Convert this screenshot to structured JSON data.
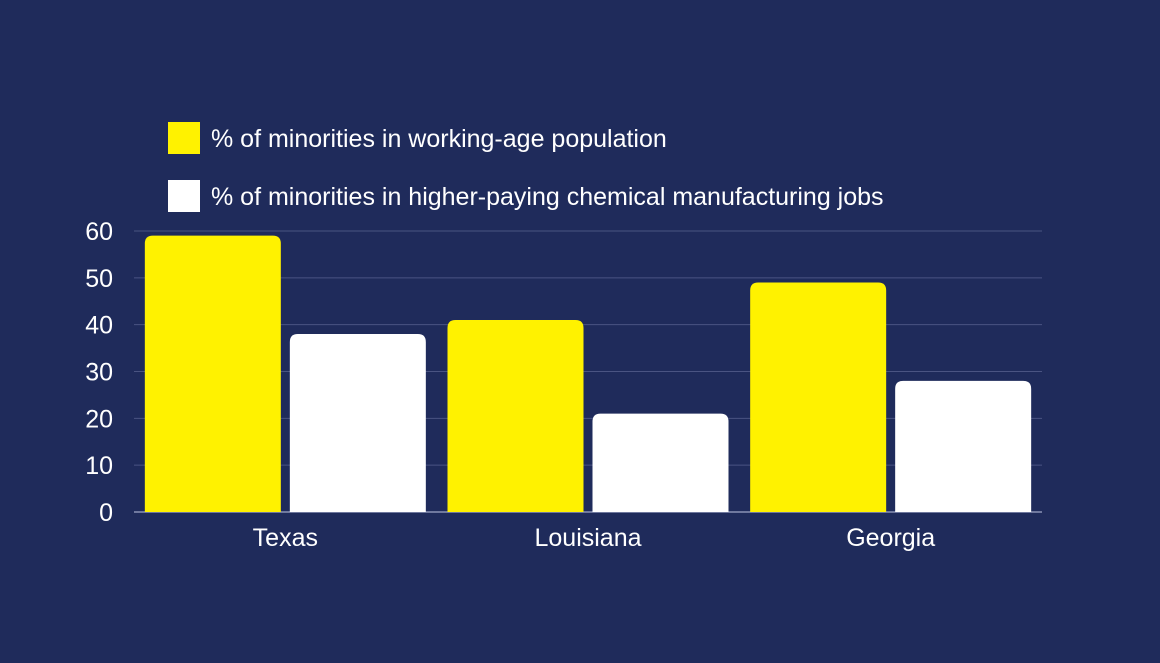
{
  "colors": {
    "background": "#1f2b5b",
    "gridline": "#4a5482",
    "text": "#ffffff"
  },
  "chart_data": {
    "type": "bar",
    "categories": [
      "Texas",
      "Louisiana",
      "Georgia"
    ],
    "series": [
      {
        "name": "% of minorities in working-age population",
        "color": "#fff200",
        "values": [
          59,
          41,
          49
        ]
      },
      {
        "name": "% of minorities in higher-paying chemical manufacturing jobs",
        "color": "#ffffff",
        "values": [
          38,
          21,
          28
        ]
      }
    ],
    "ylim": [
      0,
      60
    ],
    "yticks": [
      0,
      10,
      20,
      30,
      40,
      50,
      60
    ],
    "grid": true,
    "legend": "top-left",
    "title": "",
    "xlabel": "",
    "ylabel": ""
  }
}
